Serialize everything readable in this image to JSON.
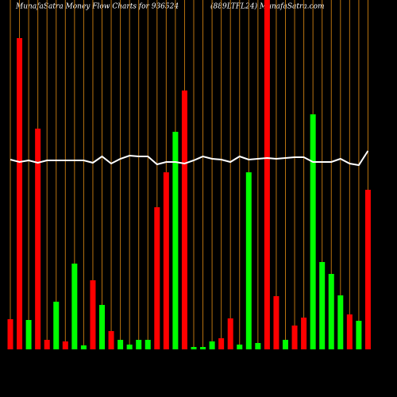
{
  "chart_data": {
    "type": "bar",
    "title": "MunafaSatra  Money Flow  Charts for 936524",
    "subtitle": "(889LTFL24) MunafaSatra.com",
    "background": "#000000",
    "gridline_color": "#b8720f",
    "line_color": "#ffffff",
    "ylim": [
      0,
      440
    ],
    "categories": [
      null,
      null,
      null,
      null,
      null,
      null,
      null,
      null,
      null,
      null,
      null,
      null,
      null,
      null,
      null,
      null,
      null,
      null,
      null,
      null,
      null,
      null,
      null,
      null,
      null,
      null,
      null,
      null,
      null,
      null,
      null,
      null,
      null,
      null,
      null,
      null,
      null,
      null,
      null,
      null
    ],
    "values": [
      38,
      392,
      37,
      278,
      12,
      60,
      10,
      108,
      5,
      87,
      56,
      23,
      12,
      6,
      12,
      12,
      179,
      223,
      274,
      326,
      3,
      3,
      10,
      14,
      39,
      6,
      223,
      8,
      440,
      67,
      12,
      30,
      40,
      296,
      110,
      95,
      68,
      44,
      36,
      201
    ],
    "bar_colors": [
      "#ff0000",
      "#ff0000",
      "#00ff00",
      "#ff0000",
      "#ff0000",
      "#00ff00",
      "#ff0000",
      "#00ff00",
      "#00ff00",
      "#ff0000",
      "#00ff00",
      "#ff0000",
      "#00ff00",
      "#00ff00",
      "#00ff00",
      "#00ff00",
      "#ff0000",
      "#ff0000",
      "#00ff00",
      "#ff0000",
      "#00ff00",
      "#00ff00",
      "#00ff00",
      "#ff0000",
      "#ff0000",
      "#00ff00",
      "#00ff00",
      "#00ff00",
      "#ff0000",
      "#ff0000",
      "#00ff00",
      "#ff0000",
      "#ff0000",
      "#00ff00",
      "#00ff00",
      "#00ff00",
      "#00ff00",
      "#ff0000",
      "#00ff00",
      "#ff0000"
    ],
    "line_values": [
      239,
      236,
      238,
      235,
      238,
      238,
      238,
      238,
      238,
      235,
      243,
      234,
      240,
      244,
      243,
      243,
      233,
      236,
      236,
      234,
      238,
      243,
      240,
      239,
      236,
      243,
      239,
      240,
      241,
      240,
      241,
      242,
      242,
      236,
      236,
      236,
      240,
      234,
      232,
      250
    ]
  }
}
